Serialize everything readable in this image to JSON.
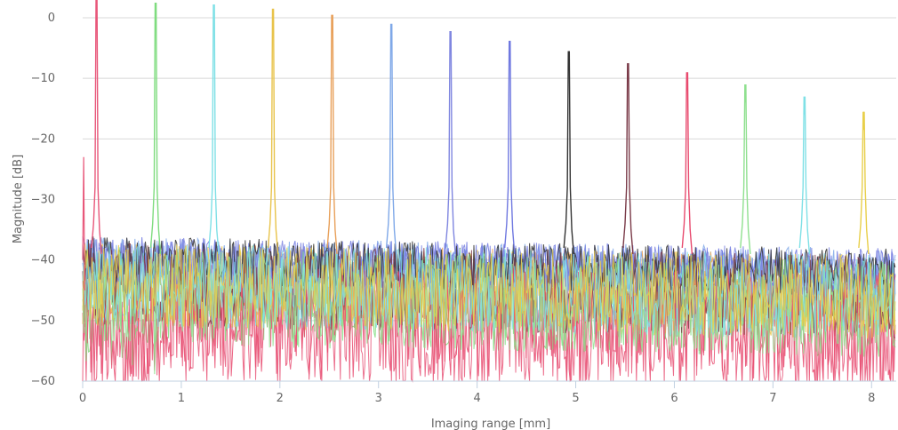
{
  "chart_data": {
    "type": "line",
    "xlabel": "Imaging range [mm]",
    "ylabel": "Magnitude [dB]",
    "xlim": [
      0,
      8.25
    ],
    "ylim": [
      -60,
      0
    ],
    "x_ticks": [
      0,
      1,
      2,
      3,
      4,
      5,
      6,
      7,
      8
    ],
    "y_ticks": [
      0,
      -10,
      -20,
      -30,
      -40,
      -50,
      -60
    ],
    "x_tick_labels": [
      "0",
      "1",
      "2",
      "3",
      "4",
      "5",
      "6",
      "7",
      "8"
    ],
    "y_tick_labels": [
      "0",
      "−10",
      "−20",
      "−30",
      "−40",
      "−50",
      "−60"
    ],
    "grid": "horizontal",
    "series": [
      {
        "color": "#e8577a",
        "peak_x": 0.14,
        "peak_y": 0.0
      },
      {
        "color": "#7fdc7f",
        "peak_x": 0.74,
        "peak_y": -0.5
      },
      {
        "color": "#7fe0e6",
        "peak_x": 1.33,
        "peak_y": -0.8
      },
      {
        "color": "#e8c34a",
        "peak_x": 1.93,
        "peak_y": -1.5
      },
      {
        "color": "#e8a05a",
        "peak_x": 2.53,
        "peak_y": -2.5
      },
      {
        "color": "#7fa8e8",
        "peak_x": 3.13,
        "peak_y": -4.0
      },
      {
        "color": "#7f86e0",
        "peak_x": 3.73,
        "peak_y": -5.2
      },
      {
        "color": "#6f78e0",
        "peak_x": 4.33,
        "peak_y": -6.8
      },
      {
        "color": "#333333",
        "peak_x": 4.93,
        "peak_y": -8.5
      },
      {
        "color": "#7a3a48",
        "peak_x": 5.53,
        "peak_y": -10.5
      },
      {
        "color": "#e84a6e",
        "peak_x": 6.13,
        "peak_y": -12.0
      },
      {
        "color": "#8fe08f",
        "peak_x": 6.72,
        "peak_y": -14.0
      },
      {
        "color": "#7fe0e6",
        "peak_x": 7.32,
        "peak_y": -16.0
      },
      {
        "color": "#e8cf4a",
        "peak_x": 7.92,
        "peak_y": -18.5
      }
    ]
  }
}
